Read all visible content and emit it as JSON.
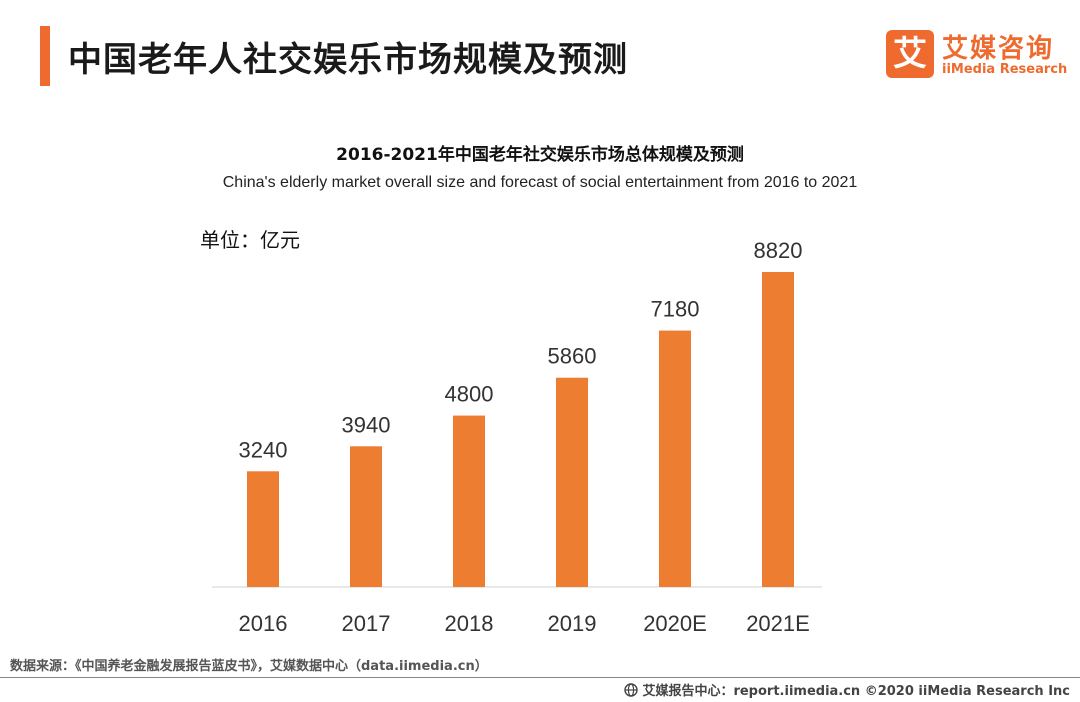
{
  "header": {
    "title": "中国老年人社交娱乐市场规模及预测",
    "accent_color": "#ee6a2e"
  },
  "logo": {
    "mark": "艾",
    "name_cn": "艾媒咨询",
    "name_en": "iiMedia Research"
  },
  "chart_data": {
    "type": "bar",
    "title": "2016-2021年中国老年社交娱乐市场总体规模及预测",
    "subtitle": "China's elderly market overall size and forecast of social entertainment from 2016 to 2021",
    "unit": "单位：亿元",
    "categories": [
      "2016",
      "2017",
      "2018",
      "2019",
      "2020E",
      "2021E"
    ],
    "values": [
      3240,
      3940,
      4800,
      5860,
      7180,
      8820
    ],
    "ylim": [
      0,
      9000
    ],
    "bar_color": "#ed7d31",
    "grid": false,
    "legend": "none"
  },
  "footer": {
    "source": "数据来源：《中国养老金融发展报告蓝皮书》，艾媒数据中心（data.iimedia.cn）",
    "credit": "艾媒报告中心：report.iimedia.cn  ©2020  iiMedia Research  Inc"
  }
}
